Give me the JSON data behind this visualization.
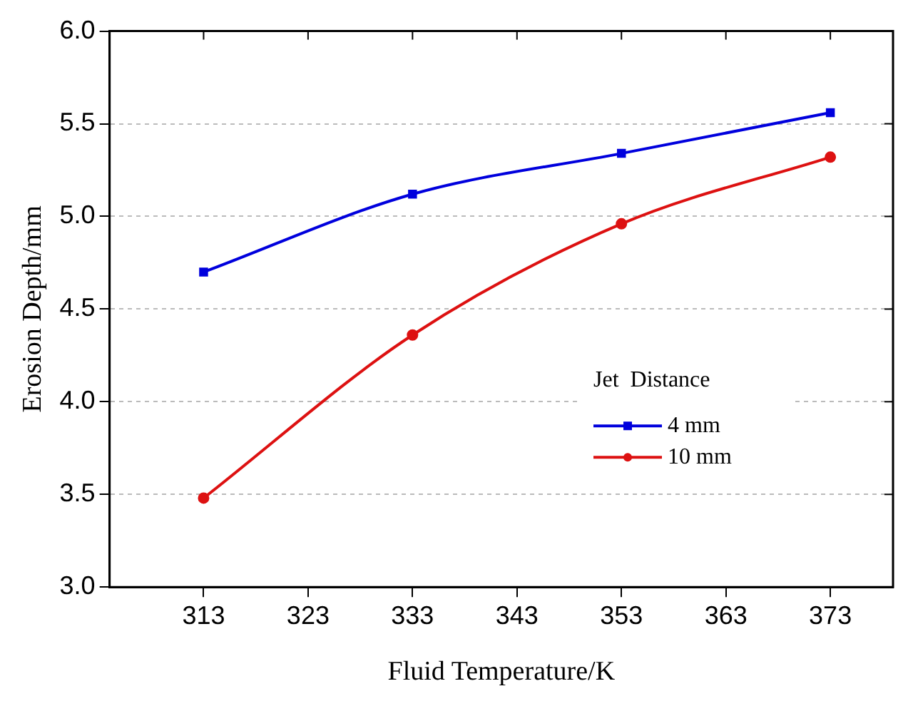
{
  "chart_data": {
    "type": "line",
    "xlabel": "Fluid Temperature/K",
    "ylabel": "Erosion Depth/mm",
    "legend_title": "Jet  Distance",
    "x": [
      313,
      333,
      353,
      373
    ],
    "series": [
      {
        "name": "4 mm",
        "color": "#0000dd",
        "values": [
          4.7,
          5.12,
          5.34,
          5.56
        ],
        "marker": "square"
      },
      {
        "name": "10 mm",
        "color": "#dd1111",
        "values": [
          3.48,
          4.36,
          4.96,
          5.32
        ],
        "marker": "circle"
      }
    ],
    "xlim": [
      304,
      379
    ],
    "xticks": [
      313,
      323,
      333,
      343,
      353,
      363,
      373
    ],
    "ylim": [
      3,
      6
    ],
    "yticks": [
      {
        "value": 3,
        "label": "3.0"
      },
      {
        "value": 3.5,
        "label": "3.5"
      },
      {
        "value": 4,
        "label": "4.0"
      },
      {
        "value": 4.5,
        "label": "4.5"
      },
      {
        "value": 5,
        "label": "5.0"
      },
      {
        "value": 5.5,
        "label": "5.5"
      },
      {
        "value": 6,
        "label": "6.0"
      }
    ],
    "grid": "y",
    "legend": "bottom right",
    "line_style": "solid"
  }
}
